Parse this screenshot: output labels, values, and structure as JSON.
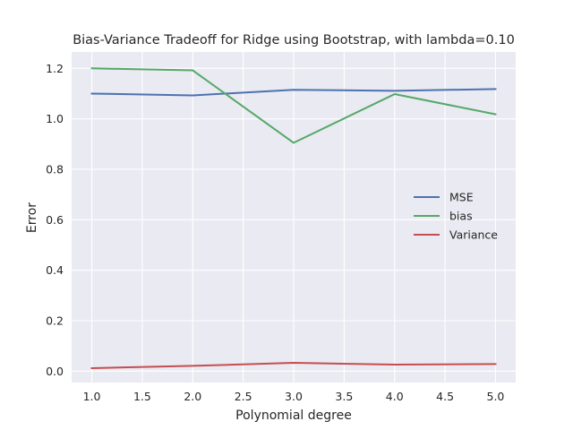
{
  "chart_data": {
    "type": "line",
    "title": "Bias-Variance Tradeoff for Ridge using Bootstrap, with lambda=0.10",
    "xlabel": "Polynomial degree",
    "ylabel": "Error",
    "x": [
      1.0,
      2.0,
      3.0,
      4.0,
      5.0
    ],
    "xlim": [
      0.8,
      5.2
    ],
    "ylim": [
      -0.045,
      1.265
    ],
    "xticks": [
      1.0,
      1.5,
      2.0,
      2.5,
      3.0,
      3.5,
      4.0,
      4.5,
      5.0
    ],
    "xtick_labels": [
      "1.0",
      "1.5",
      "2.0",
      "2.5",
      "3.0",
      "3.5",
      "4.0",
      "4.5",
      "5.0"
    ],
    "yticks": [
      0.0,
      0.2,
      0.4,
      0.6,
      0.8,
      1.0,
      1.2
    ],
    "ytick_labels": [
      "0.0",
      "0.2",
      "0.4",
      "0.6",
      "0.8",
      "1.0",
      "1.2"
    ],
    "grid": true,
    "legend_position": "center-right",
    "background": "#eaeaf2",
    "series": [
      {
        "name": "MSE",
        "color": "#4c72b0",
        "values": [
          1.1,
          1.093,
          1.115,
          1.111,
          1.118
        ]
      },
      {
        "name": "bias",
        "color": "#55a868",
        "values": [
          1.2,
          1.192,
          0.905,
          1.098,
          1.018
        ]
      },
      {
        "name": "Variance",
        "color": "#c44e52",
        "values": [
          0.012,
          0.021,
          0.033,
          0.026,
          0.028
        ]
      }
    ]
  }
}
